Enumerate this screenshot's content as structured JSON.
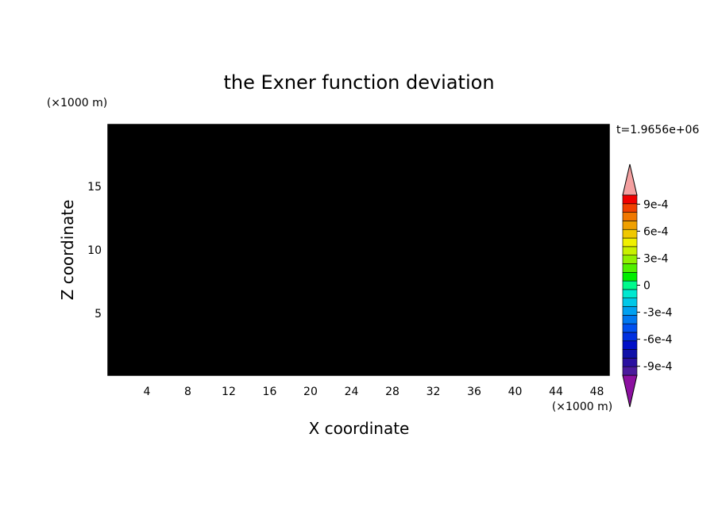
{
  "chart_data": {
    "type": "contour",
    "title": "the Exner function deviation",
    "x_label": "X coordinate",
    "y_label": "Z coordinate",
    "x_unit": "(×1000 m)",
    "y_unit": "(×1000 m)",
    "annotation": "t=1.9656e+06",
    "xlim": [
      0.2,
      49.2
    ],
    "xticks": [
      4,
      8,
      12,
      16,
      20,
      24,
      28,
      32,
      36,
      40,
      44,
      48
    ],
    "ylim": [
      0.125,
      19.875
    ],
    "yticks": [
      5,
      10,
      15
    ],
    "colorbar": {
      "clim": [
        -0.001,
        0.001
      ],
      "ticks": [
        {
          "value": -0.0009,
          "label": "-9e-4"
        },
        {
          "value": -0.0006,
          "label": "-6e-4"
        },
        {
          "value": -0.0003,
          "label": "-3e-4"
        },
        0,
        {
          "value": 0.0003,
          "label": "3e-4"
        },
        {
          "value": 0.0006,
          "label": "6e-4"
        },
        {
          "value": 0.0009,
          "label": "9e-4"
        }
      ],
      "colors": [
        "#8c10a0",
        "#4b1a9c",
        "#2a10a0",
        "#1010a8",
        "#0010c8",
        "#0030e0",
        "#0050f0",
        "#0078f0",
        "#00a0f0",
        "#00c8e8",
        "#00e8d0",
        "#00fa8c",
        "#00ee00",
        "#50f000",
        "#90f000",
        "#c8f000",
        "#f0f000",
        "#f0c800",
        "#f0a000",
        "#f07800",
        "#f04000",
        "#f00000",
        "#f4a0a0"
      ]
    }
  }
}
